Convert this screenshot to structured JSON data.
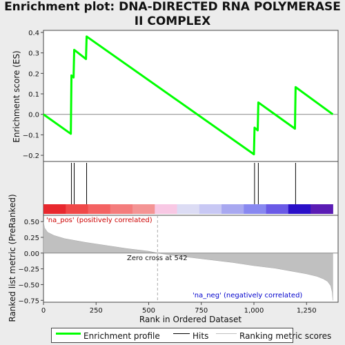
{
  "title": "Enrichment plot: DNA-DIRECTED RNA POLYMERASE II COMPLEX",
  "chart_data": [
    {
      "type": "line",
      "name": "enrichment-profile",
      "ylabel": "Enrichment score (ES)",
      "xlim": [
        0,
        1400
      ],
      "ylim": [
        -0.23,
        0.41
      ],
      "yticks": [
        -0.2,
        -0.1,
        0.0,
        0.1,
        0.2,
        0.3,
        0.4
      ],
      "ytick_labels": [
        "−0.2",
        "−0.1",
        "0.0",
        "0.1",
        "0.2",
        "0.3",
        "0.4"
      ],
      "grid": false,
      "color": "#00ff00",
      "x": [
        0,
        130,
        133,
        143,
        146,
        202,
        205,
        1000,
        1003,
        1018,
        1021,
        1195,
        1198,
        1375
      ],
      "y": [
        0.0,
        -0.095,
        0.19,
        0.18,
        0.315,
        0.27,
        0.38,
        -0.195,
        -0.065,
        -0.078,
        0.058,
        -0.07,
        0.133,
        0.0
      ]
    },
    {
      "type": "hits",
      "name": "hits",
      "hit_positions": [
        133,
        146,
        205,
        1003,
        1021,
        1198
      ],
      "rank_bar_colors": [
        "#e8282e",
        "#f04848",
        "#f46262",
        "#f47c7c",
        "#f49494",
        "#f8c8e4",
        "#dcdcf4",
        "#c8c8f4",
        "#a8a8f0",
        "#8888f0",
        "#6a5ae6",
        "#2a10c8",
        "#5a1cb4"
      ]
    },
    {
      "type": "area",
      "name": "ranked-list-metric",
      "ylabel": "Ranked list metric (PreRanked)",
      "xlabel": "Rank in Ordered Dataset",
      "xlim": [
        0,
        1400
      ],
      "ylim": [
        -0.78,
        0.6
      ],
      "xticks": [
        0,
        250,
        500,
        750,
        1000,
        1250
      ],
      "xtick_labels": [
        "0",
        "250",
        "500",
        "750",
        "1,000",
        "1,250"
      ],
      "yticks": [
        -0.75,
        -0.5,
        -0.25,
        0.0,
        0.25,
        0.5
      ],
      "ytick_labels": [
        "−0.75",
        "−0.50",
        "−0.25",
        "0.00",
        "0.25",
        "0.50"
      ],
      "color": "#c0c0c0",
      "x": [
        0,
        5,
        20,
        50,
        100,
        150,
        200,
        300,
        400,
        500,
        542,
        600,
        700,
        800,
        900,
        1000,
        1100,
        1200,
        1250,
        1300,
        1330,
        1350,
        1365,
        1372,
        1375
      ],
      "y": [
        0.5,
        0.4,
        0.33,
        0.28,
        0.23,
        0.2,
        0.17,
        0.12,
        0.07,
        0.03,
        0.0,
        -0.03,
        -0.07,
        -0.11,
        -0.15,
        -0.2,
        -0.24,
        -0.3,
        -0.33,
        -0.37,
        -0.41,
        -0.45,
        -0.52,
        -0.62,
        -0.75
      ],
      "zero_cross_x": 542,
      "annotations": {
        "pos": "'na_pos' (positively correlated)",
        "neg": "'na_neg' (negatively correlated)",
        "zero": "Zero cross at 542"
      }
    }
  ],
  "legend": {
    "items": [
      {
        "label": "Enrichment profile",
        "color": "#00ff00"
      },
      {
        "label": "Hits",
        "color": "#000000"
      },
      {
        "label": "Ranking metric scores",
        "color": "#c0c0c0"
      }
    ]
  }
}
